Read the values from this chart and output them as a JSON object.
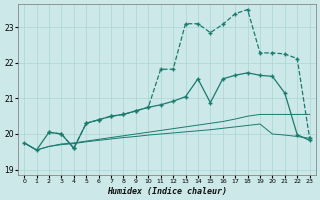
{
  "xlabel": "Humidex (Indice chaleur)",
  "bg_color": "#cce8e8",
  "grid_color": "#aad4d4",
  "line_color": "#1a7a6e",
  "xlim": [
    -0.5,
    23.5
  ],
  "ylim": [
    18.85,
    23.65
  ],
  "yticks": [
    19,
    20,
    21,
    22,
    23
  ],
  "xticks": [
    0,
    1,
    2,
    3,
    4,
    5,
    6,
    7,
    8,
    9,
    10,
    11,
    12,
    13,
    14,
    15,
    16,
    17,
    18,
    19,
    20,
    21,
    22,
    23
  ],
  "line_bottom_x": [
    0,
    1,
    2,
    3,
    4,
    5,
    6,
    7,
    8,
    9,
    10,
    11,
    12,
    13,
    14,
    15,
    16,
    17,
    18,
    19,
    20,
    21,
    22,
    23
  ],
  "line_bottom_y": [
    19.75,
    19.55,
    19.65,
    19.7,
    19.73,
    19.78,
    19.82,
    19.86,
    19.9,
    19.93,
    19.97,
    20.0,
    20.03,
    20.06,
    20.09,
    20.12,
    20.16,
    20.2,
    20.24,
    20.28,
    20.0,
    19.97,
    19.93,
    19.88
  ],
  "line_diag_x": [
    0,
    1,
    2,
    3,
    4,
    5,
    6,
    7,
    8,
    9,
    10,
    11,
    12,
    13,
    14,
    15,
    16,
    17,
    18,
    19,
    20,
    21,
    22,
    23
  ],
  "line_diag_y": [
    19.75,
    19.55,
    20.05,
    20.0,
    19.6,
    20.3,
    20.4,
    20.5,
    20.55,
    20.65,
    20.75,
    20.82,
    20.92,
    21.05,
    21.55,
    20.88,
    21.55,
    21.65,
    21.72,
    21.65,
    21.62,
    21.15,
    19.98,
    19.82
  ],
  "line_upper_x": [
    2,
    3,
    4,
    5,
    6,
    7,
    8,
    9,
    10,
    11,
    12,
    13,
    14,
    15,
    16,
    17,
    18,
    19,
    20,
    21,
    22,
    23
  ],
  "line_upper_y": [
    20.05,
    20.0,
    19.6,
    20.3,
    20.4,
    20.5,
    20.55,
    20.65,
    20.75,
    21.82,
    21.82,
    23.1,
    23.1,
    22.85,
    23.08,
    23.38,
    23.5,
    22.28,
    22.28,
    22.25,
    22.12,
    19.88
  ],
  "line_straight_x": [
    0,
    1,
    2,
    3,
    4,
    5,
    6,
    7,
    8,
    9,
    10,
    11,
    12,
    13,
    14,
    15,
    16,
    17,
    18,
    19,
    20,
    21,
    22,
    23
  ],
  "line_straight_y": [
    19.75,
    19.55,
    19.65,
    19.72,
    19.75,
    19.8,
    19.85,
    19.9,
    19.95,
    20.0,
    20.05,
    20.1,
    20.15,
    20.2,
    20.25,
    20.3,
    20.35,
    20.42,
    20.5,
    20.55,
    20.55,
    20.55,
    20.55,
    20.55
  ]
}
